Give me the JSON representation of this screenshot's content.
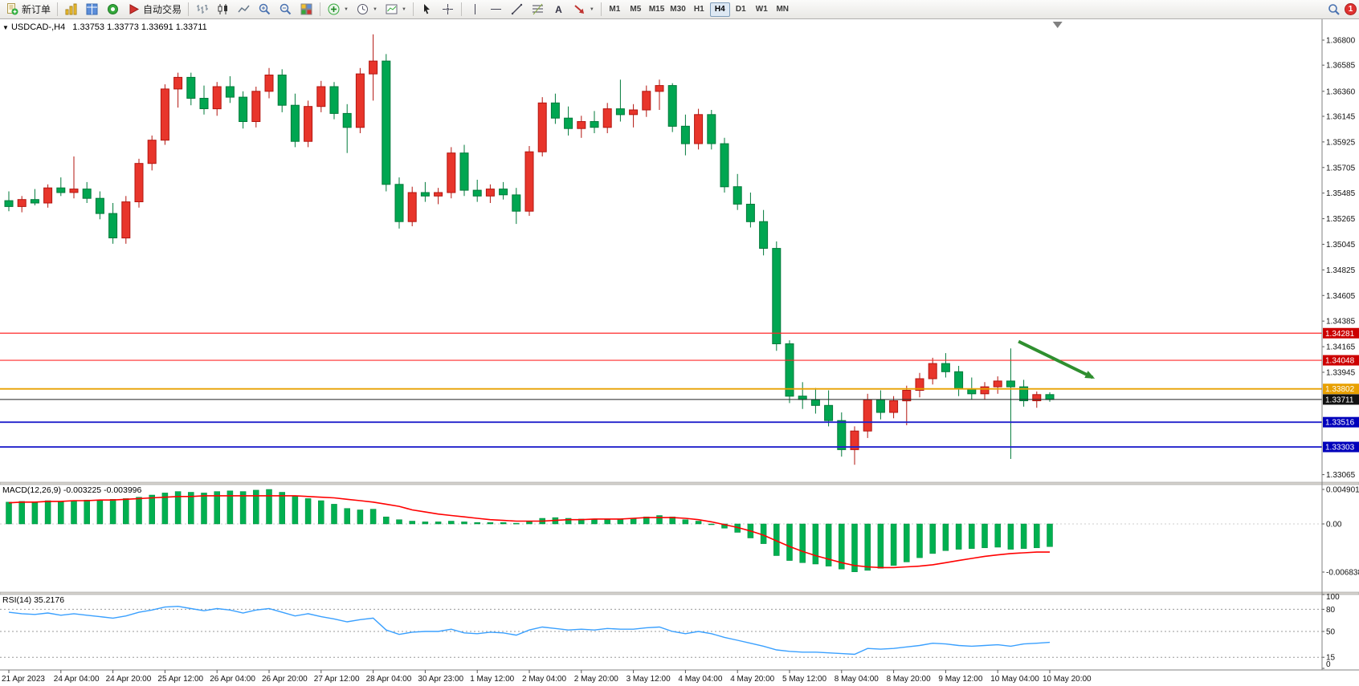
{
  "toolbar": {
    "new_order_label": "新订单",
    "auto_trading_label": "自动交易",
    "timeframes": [
      "M1",
      "M5",
      "M15",
      "M30",
      "H1",
      "H4",
      "D1",
      "W1",
      "MN"
    ],
    "active_timeframe": "H4",
    "notification_badge": "1"
  },
  "chart_header": {
    "collapse_marker": "▼",
    "symbol_period": "USDCAD-,H4",
    "ohlc": "1.33753 1.33773 1.33691 1.33711"
  },
  "indicators": {
    "macd_label": "MACD(12,26,9) -0.003225 -0.003996",
    "rsi_label": "RSI(14) 35.2176"
  },
  "colors": {
    "bull": "#e8352b",
    "bull_border": "#b3150f",
    "bear": "#00a651",
    "bear_border": "#007a3a",
    "macd_histogram": "#00b050",
    "macd_histogram_border": "#008a3c",
    "macd_signal": "#ff0000",
    "rsi_line": "#3aa0ff",
    "arrow": "#2f8f2f"
  },
  "chart_data": [
    {
      "type": "candlestick",
      "title": "USDCAD-,H4",
      "current_ohlc": {
        "open": 1.33753,
        "high": 1.33773,
        "low": 1.33691,
        "close": 1.33711
      },
      "y_axis_range": [
        1.33065,
        1.368
      ],
      "y_ticks": [
        1.368,
        1.36585,
        1.3636,
        1.36145,
        1.35925,
        1.35705,
        1.35485,
        1.35265,
        1.35045,
        1.34825,
        1.34605,
        1.34385,
        1.34165,
        1.33945,
        1.33065
      ],
      "x_label_step": 4,
      "x_labels": [
        "21 Apr 2023",
        "24 Apr 04:00",
        "24 Apr 20:00",
        "25 Apr 12:00",
        "26 Apr 04:00",
        "26 Apr 20:00",
        "27 Apr 12:00",
        "28 Apr 04:00",
        "30 Apr 23:00",
        "1 May 12:00",
        "2 May 04:00",
        "2 May 20:00",
        "3 May 12:00",
        "4 May 04:00",
        "4 May 20:00",
        "5 May 12:00",
        "8 May 04:00",
        "8 May 20:00",
        "9 May 12:00",
        "10 May 04:00",
        "10 May 20:00"
      ],
      "hlines": [
        {
          "name": "resistance-line-1",
          "price": 1.34281,
          "label": "1.34281",
          "color": "#ff2a2a",
          "badge_bg": "#cc0000",
          "width": 1.2,
          "dashed": false
        },
        {
          "name": "resistance-line-2",
          "price": 1.34048,
          "label": "1.34048",
          "color": "#ff2a2a",
          "badge_bg": "#cc0000",
          "width": 1.2,
          "dashed": false
        },
        {
          "name": "pivot-line",
          "price": 1.33802,
          "label": "1.33802",
          "color": "#e8a000",
          "badge_bg": "#e8a000",
          "width": 1.8,
          "dashed": false
        },
        {
          "name": "current-price-line",
          "price": 1.33711,
          "label": "1.33711",
          "color": "#222222",
          "badge_bg": "#111111",
          "width": 1,
          "dashed": false
        },
        {
          "name": "support-line-1",
          "price": 1.33516,
          "label": "1.33516",
          "color": "#2222cc",
          "badge_bg": "#0000bb",
          "width": 1.8,
          "dashed": false
        },
        {
          "name": "support-line-2",
          "price": 1.33303,
          "label": "1.33303",
          "color": "#2222cc",
          "badge_bg": "#0000bb",
          "width": 1.8,
          "dashed": false
        }
      ],
      "arrow": {
        "from_index": 77.6,
        "from_price": 1.3421,
        "to_index": 83.3,
        "to_price": 1.339
      },
      "shift_marker_index": 80.6,
      "candles": [
        [
          1.3542,
          1.355,
          1.3533,
          1.3537
        ],
        [
          1.3537,
          1.3546,
          1.3532,
          1.3543
        ],
        [
          1.3543,
          1.3552,
          1.3538,
          1.354
        ],
        [
          1.354,
          1.3556,
          1.3536,
          1.3553
        ],
        [
          1.3553,
          1.3562,
          1.3546,
          1.3549
        ],
        [
          1.3549,
          1.358,
          1.3544,
          1.3552
        ],
        [
          1.3552,
          1.3558,
          1.354,
          1.3544
        ],
        [
          1.3544,
          1.355,
          1.3526,
          1.3531
        ],
        [
          1.3531,
          1.354,
          1.3505,
          1.351
        ],
        [
          1.351,
          1.3546,
          1.3505,
          1.3541
        ],
        [
          1.3541,
          1.3578,
          1.3536,
          1.3574
        ],
        [
          1.3574,
          1.3598,
          1.3568,
          1.3594
        ],
        [
          1.3594,
          1.3642,
          1.359,
          1.3638
        ],
        [
          1.3638,
          1.3652,
          1.3622,
          1.3648
        ],
        [
          1.3648,
          1.3652,
          1.3624,
          1.363
        ],
        [
          1.363,
          1.3641,
          1.3616,
          1.3621
        ],
        [
          1.3621,
          1.3644,
          1.3615,
          1.364
        ],
        [
          1.364,
          1.3649,
          1.3626,
          1.3631
        ],
        [
          1.3631,
          1.3636,
          1.3604,
          1.361
        ],
        [
          1.361,
          1.364,
          1.3605,
          1.3636
        ],
        [
          1.3636,
          1.3656,
          1.363,
          1.365
        ],
        [
          1.365,
          1.3655,
          1.3618,
          1.3624
        ],
        [
          1.3624,
          1.3634,
          1.3588,
          1.3593
        ],
        [
          1.3593,
          1.3628,
          1.3588,
          1.3623
        ],
        [
          1.3623,
          1.3645,
          1.3618,
          1.364
        ],
        [
          1.364,
          1.3644,
          1.3612,
          1.3617
        ],
        [
          1.3617,
          1.3625,
          1.3583,
          1.3605
        ],
        [
          1.3605,
          1.3656,
          1.36,
          1.3651
        ],
        [
          1.3651,
          1.3685,
          1.3628,
          1.3662
        ],
        [
          1.3662,
          1.3668,
          1.355,
          1.3556
        ],
        [
          1.3556,
          1.3562,
          1.3518,
          1.3524
        ],
        [
          1.3524,
          1.3554,
          1.352,
          1.3549
        ],
        [
          1.3549,
          1.3558,
          1.3541,
          1.3546
        ],
        [
          1.3546,
          1.3553,
          1.3539,
          1.3549
        ],
        [
          1.3549,
          1.3588,
          1.3544,
          1.3583
        ],
        [
          1.3583,
          1.359,
          1.3546,
          1.3551
        ],
        [
          1.3551,
          1.356,
          1.3541,
          1.3546
        ],
        [
          1.3546,
          1.3556,
          1.354,
          1.3552
        ],
        [
          1.3552,
          1.3558,
          1.3543,
          1.3547
        ],
        [
          1.3547,
          1.3553,
          1.3522,
          1.3533
        ],
        [
          1.3533,
          1.3589,
          1.3529,
          1.3584
        ],
        [
          1.3584,
          1.3631,
          1.358,
          1.3626
        ],
        [
          1.3626,
          1.3634,
          1.3608,
          1.3613
        ],
        [
          1.3613,
          1.3623,
          1.3598,
          1.3604
        ],
        [
          1.3604,
          1.3615,
          1.3596,
          1.361
        ],
        [
          1.361,
          1.3619,
          1.36,
          1.3605
        ],
        [
          1.3605,
          1.3626,
          1.36,
          1.3621
        ],
        [
          1.3621,
          1.3646,
          1.361,
          1.3616
        ],
        [
          1.3616,
          1.3625,
          1.3605,
          1.362
        ],
        [
          1.362,
          1.3641,
          1.3614,
          1.3636
        ],
        [
          1.3636,
          1.3646,
          1.362,
          1.3641
        ],
        [
          1.3641,
          1.3643,
          1.3601,
          1.3606
        ],
        [
          1.3606,
          1.3616,
          1.3581,
          1.3591
        ],
        [
          1.3591,
          1.3621,
          1.3586,
          1.3616
        ],
        [
          1.3616,
          1.362,
          1.3586,
          1.3591
        ],
        [
          1.3591,
          1.3596,
          1.3549,
          1.3554
        ],
        [
          1.3554,
          1.3565,
          1.3534,
          1.3539
        ],
        [
          1.3539,
          1.3549,
          1.3519,
          1.3524
        ],
        [
          1.3524,
          1.3534,
          1.3495,
          1.3501
        ],
        [
          1.3501,
          1.3507,
          1.3413,
          1.3419
        ],
        [
          1.3419,
          1.3422,
          1.3368,
          1.3374
        ],
        [
          1.3374,
          1.3386,
          1.3363,
          1.3371
        ],
        [
          1.3371,
          1.3381,
          1.3359,
          1.3366
        ],
        [
          1.3366,
          1.3379,
          1.3348,
          1.3353
        ],
        [
          1.3353,
          1.336,
          1.3322,
          1.3328
        ],
        [
          1.3328,
          1.3348,
          1.3315,
          1.3344
        ],
        [
          1.3344,
          1.3376,
          1.3338,
          1.3371
        ],
        [
          1.3371,
          1.3379,
          1.3354,
          1.336
        ],
        [
          1.336,
          1.3374,
          1.3355,
          1.337
        ],
        [
          1.337,
          1.3383,
          1.3349,
          1.3379
        ],
        [
          1.3379,
          1.3394,
          1.3373,
          1.3389
        ],
        [
          1.3389,
          1.3407,
          1.3384,
          1.3402
        ],
        [
          1.3402,
          1.3411,
          1.339,
          1.3395
        ],
        [
          1.3395,
          1.34,
          1.3374,
          1.338
        ],
        [
          1.338,
          1.339,
          1.3371,
          1.3376
        ],
        [
          1.3376,
          1.3386,
          1.3371,
          1.3382
        ],
        [
          1.3382,
          1.3391,
          1.3376,
          1.3387
        ],
        [
          1.3387,
          1.3415,
          1.332,
          1.3382
        ],
        [
          1.3382,
          1.3388,
          1.3365,
          1.337
        ],
        [
          1.337,
          1.3378,
          1.3364,
          1.33753
        ],
        [
          1.33753,
          1.33773,
          1.33691,
          1.33711
        ]
      ]
    },
    {
      "type": "bar",
      "title": "MACD(12,26,9)",
      "current": {
        "macd": -0.003225,
        "signal": -0.003996
      },
      "y_ticks": [
        {
          "value": 0.004901,
          "label": "0.004901"
        },
        {
          "value": 0.0,
          "label": "0.00"
        },
        {
          "value": -0.006838,
          "label": "-0.006838"
        }
      ],
      "histogram": [
        0.0031,
        0.0032,
        0.0031,
        0.0033,
        0.0032,
        0.0033,
        0.0034,
        0.0033,
        0.0035,
        0.0036,
        0.0038,
        0.0041,
        0.0044,
        0.0046,
        0.0045,
        0.0044,
        0.0046,
        0.0047,
        0.0046,
        0.0048,
        0.0049,
        0.0045,
        0.004,
        0.0036,
        0.0033,
        0.0028,
        0.0022,
        0.002,
        0.0021,
        0.001,
        0.0006,
        0.0004,
        0.0003,
        0.0003,
        0.0004,
        0.0003,
        0.0002,
        0.0002,
        0.0002,
        0.0001,
        0.0004,
        0.0008,
        0.0009,
        0.0008,
        0.0007,
        0.0006,
        0.0006,
        0.0007,
        0.0008,
        0.001,
        0.0012,
        0.001,
        0.0006,
        0.0004,
        0.0,
        -0.0006,
        -0.0012,
        -0.002,
        -0.0028,
        -0.0045,
        -0.0052,
        -0.0055,
        -0.0057,
        -0.006,
        -0.0064,
        -0.0068,
        -0.0066,
        -0.0063,
        -0.0059,
        -0.0054,
        -0.0048,
        -0.0042,
        -0.0038,
        -0.0036,
        -0.0035,
        -0.0034,
        -0.0033,
        -0.0036,
        -0.0035,
        -0.0034,
        -0.003225
      ],
      "signal": [
        0.003,
        0.0031,
        0.0031,
        0.0032,
        0.0032,
        0.0033,
        0.0033,
        0.0034,
        0.0034,
        0.0035,
        0.0036,
        0.0037,
        0.0038,
        0.0039,
        0.0039,
        0.004,
        0.004,
        0.004,
        0.004,
        0.004,
        0.004,
        0.004,
        0.004,
        0.0039,
        0.0038,
        0.0037,
        0.0035,
        0.0033,
        0.0031,
        0.0028,
        0.0025,
        0.002,
        0.0017,
        0.0014,
        0.0012,
        0.001,
        0.0008,
        0.0006,
        0.0005,
        0.0004,
        0.0004,
        0.0004,
        0.0005,
        0.0006,
        0.0006,
        0.0007,
        0.0007,
        0.0007,
        0.0008,
        0.0009,
        0.0009,
        0.0009,
        0.0008,
        0.0006,
        0.0003,
        -0.0001,
        -0.0005,
        -0.001,
        -0.0016,
        -0.0024,
        -0.0032,
        -0.0039,
        -0.0045,
        -0.005,
        -0.0055,
        -0.0059,
        -0.0061,
        -0.0062,
        -0.0062,
        -0.0061,
        -0.006,
        -0.0058,
        -0.0055,
        -0.0052,
        -0.0049,
        -0.0046,
        -0.0044,
        -0.0042,
        -0.0041,
        -0.004,
        -0.003996
      ]
    },
    {
      "type": "line",
      "title": "RSI(14)",
      "current": 35.2176,
      "y_range": [
        0,
        100
      ],
      "y_ticks": [
        100,
        80,
        50,
        15,
        0
      ],
      "levels": [
        80,
        50,
        15
      ],
      "values": [
        76,
        74,
        73,
        75,
        72,
        74,
        72,
        70,
        68,
        71,
        76,
        79,
        83,
        84,
        81,
        78,
        81,
        79,
        75,
        79,
        81,
        76,
        71,
        74,
        70,
        67,
        63,
        66,
        68,
        52,
        46,
        49,
        50,
        50,
        53,
        48,
        47,
        49,
        48,
        45,
        52,
        56,
        54,
        52,
        53,
        52,
        54,
        53,
        53,
        55,
        56,
        50,
        47,
        50,
        47,
        42,
        38,
        34,
        30,
        25,
        23,
        22,
        22,
        21,
        20,
        19,
        27,
        26,
        27,
        29,
        31,
        34,
        33,
        31,
        30,
        31,
        32,
        30,
        33,
        34,
        35.2176
      ]
    }
  ]
}
